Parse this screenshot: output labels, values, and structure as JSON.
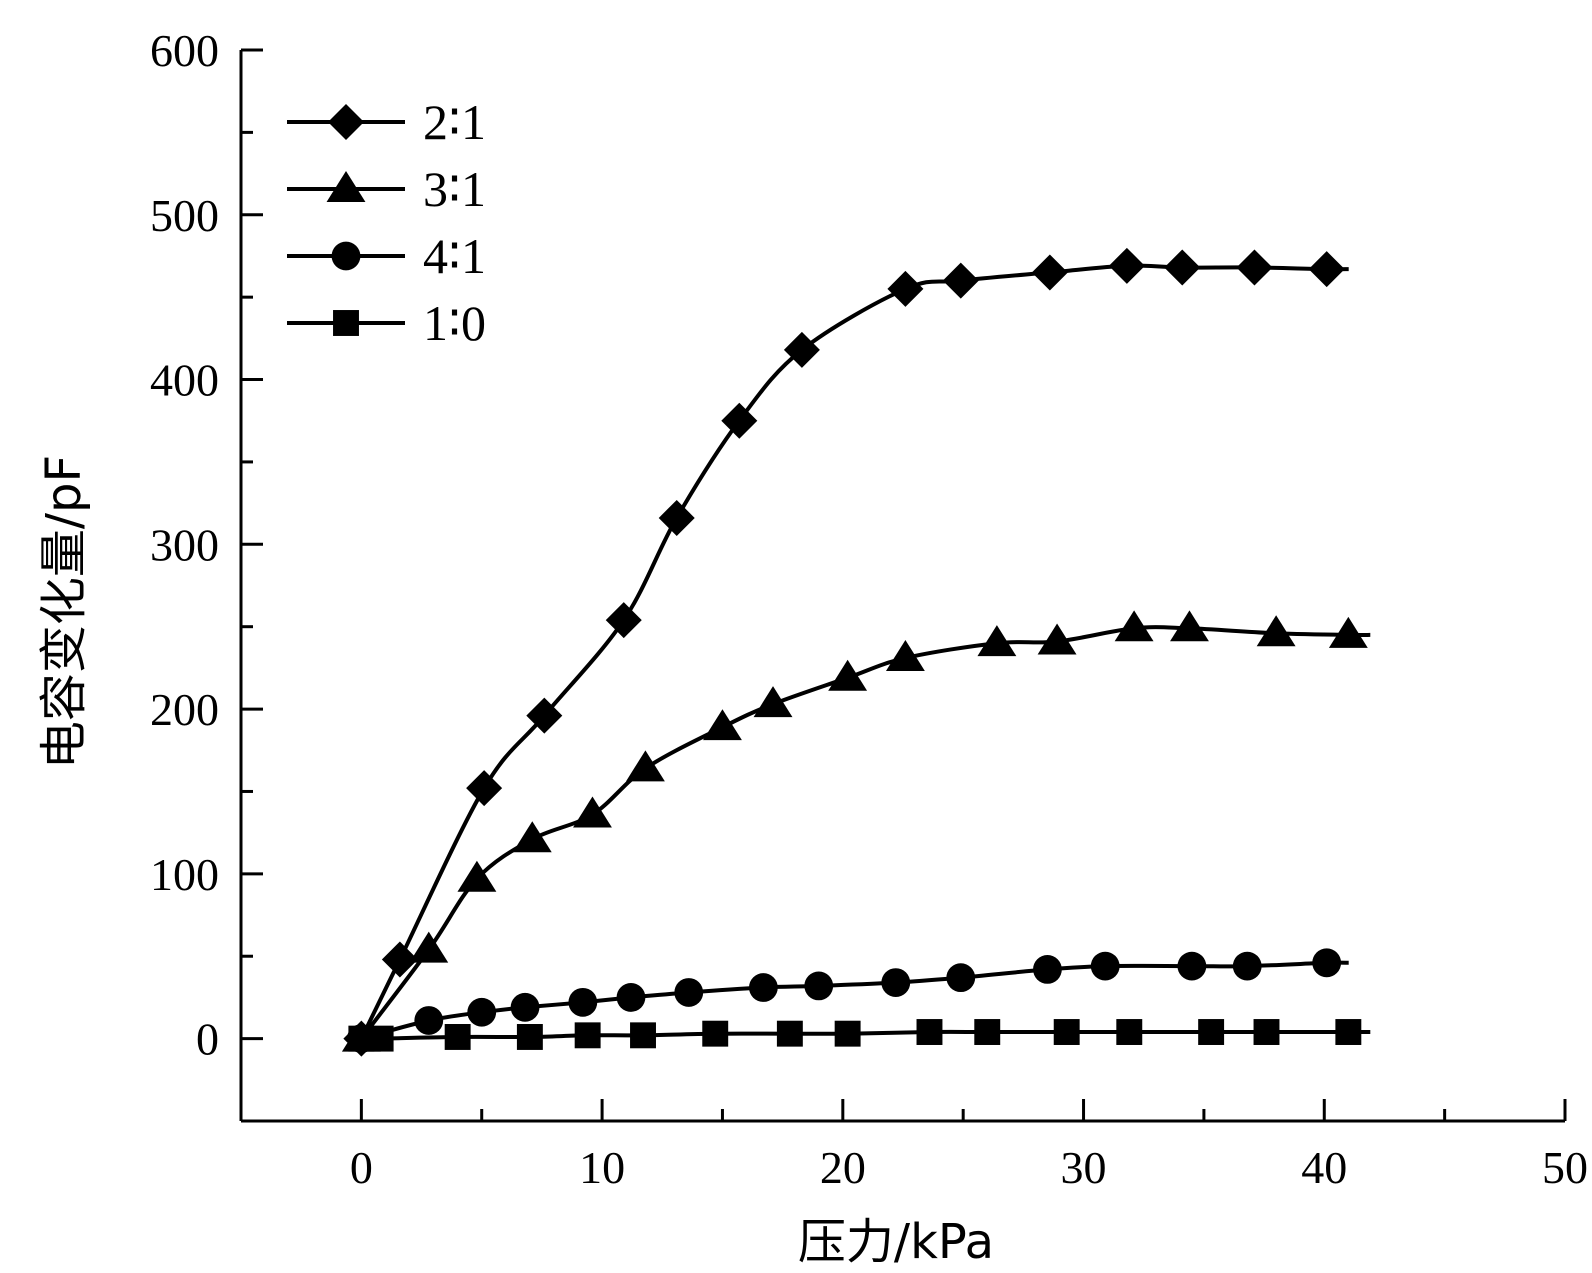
{
  "chart_data": {
    "type": "line",
    "title": "",
    "xlabel": "压力/kPa",
    "ylabel": "电容变化量/pF",
    "xlim": [
      -5,
      50
    ],
    "ylim": [
      -50,
      600
    ],
    "xticks": [
      "0",
      "10",
      "20",
      "30",
      "40",
      "50"
    ],
    "yticks": [
      "0",
      "100",
      "200",
      "300",
      "400",
      "500",
      "600"
    ],
    "grid": false,
    "legend_position": "top-left",
    "series": [
      {
        "name": "2∶1",
        "marker": "diamond",
        "x": [
          0,
          1.6,
          5.1,
          7.6,
          10.9,
          13.1,
          15.7,
          18.3,
          22.6,
          24.9,
          28.6,
          31.8,
          34.1,
          37.1,
          40.1
        ],
        "y": [
          0,
          48,
          152,
          196,
          254,
          316,
          375,
          418,
          455,
          460,
          465,
          469,
          468,
          468,
          467
        ]
      },
      {
        "name": "3∶1",
        "marker": "triangle",
        "x": [
          0,
          2.8,
          4.8,
          7.1,
          9.6,
          11.8,
          15.0,
          17.1,
          20.2,
          22.6,
          26.4,
          28.9,
          32.1,
          34.4,
          38.0,
          41.0
        ],
        "y": [
          0,
          54,
          97,
          121,
          136,
          164,
          189,
          203,
          219,
          231,
          240,
          241,
          249,
          249,
          246,
          245
        ]
      },
      {
        "name": "4∶1",
        "marker": "circle",
        "x": [
          0,
          2.8,
          5.0,
          6.8,
          9.2,
          11.2,
          13.6,
          16.7,
          19.0,
          22.2,
          24.9,
          28.5,
          30.9,
          34.5,
          36.8,
          40.1
        ],
        "y": [
          0,
          11,
          16,
          19,
          22,
          25,
          28,
          31,
          32,
          34,
          37,
          42,
          44,
          44,
          44,
          46
        ]
      },
      {
        "name": "1∶0",
        "marker": "square",
        "x": [
          0,
          0.8,
          4.0,
          7.0,
          9.4,
          11.7,
          14.7,
          17.8,
          20.2,
          23.6,
          26.0,
          29.3,
          31.9,
          35.3,
          37.6,
          41.0
        ],
        "y": [
          0,
          0,
          1,
          1,
          2,
          2,
          3,
          3,
          3,
          4,
          4,
          4,
          4,
          4,
          4,
          4
        ]
      }
    ]
  }
}
